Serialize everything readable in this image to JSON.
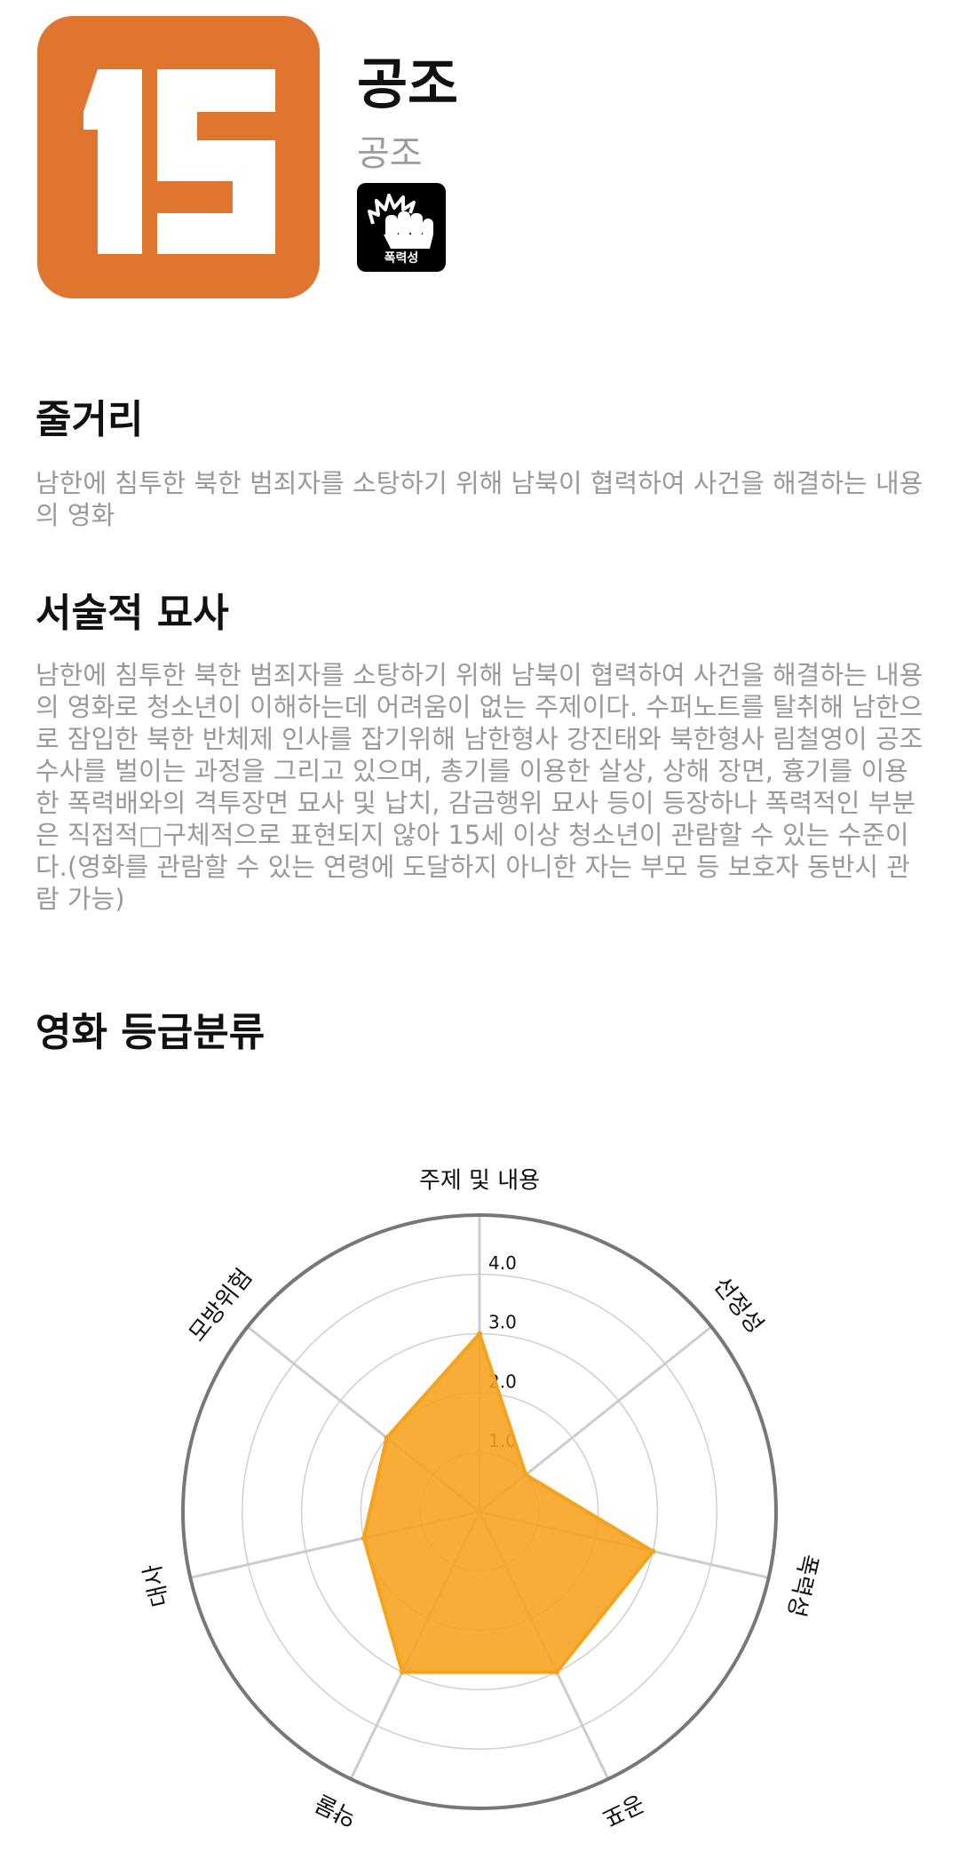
{
  "movie": {
    "rating_number": "15",
    "title": "공조",
    "subtitle": "공조",
    "content_badge_label": "폭력성",
    "content_badge_icon": "fist-icon"
  },
  "sections": {
    "synopsis_heading": "줄거리",
    "synopsis_text": "남한에 침투한 북한 범죄자를 소탕하기 위해 남북이 협력하여 사건을 해결하는 내용의 영화",
    "description_heading": "서술적 묘사",
    "description_text": "남한에 침투한 북한 범죄자를 소탕하기 위해 남북이 협력하여 사건을 해결하는 내용의 영화로 청소년이 이해하는데 어려움이 없는 주제이다. 수퍼노트를 탈취해 남한으로 잠입한 북한 반체제 인사를 잡기위해 남한형사 강진태와 북한형사 림철영이 공조수사를 벌이는 과정을 그리고 있으며, 총기를 이용한 살상, 상해 장면, 흉기를 이용한 폭력배와의 격투장면 묘사 및 납치, 감금행위 묘사 등이 등장하나 폭력적인 부분은 직접적□구체적으로 표현되지 않아 15세 이상 청소년이 관람할 수 있는 수준이다.(영화를 관람할 수 있는 연령에 도달하지 아니한 자는 부모 등 보호자 동반시 관람 가능)",
    "classification_heading": "영화 등급분류"
  },
  "colors": {
    "badge_orange": "#e0752f",
    "radar_fill": "#f8a21e"
  },
  "chart_data": {
    "type": "radar",
    "title": "영화 등급분류",
    "categories": [
      "주제 및 내용",
      "선정성",
      "폭력성",
      "공포",
      "약물",
      "대사",
      "모방위험"
    ],
    "values": [
      3.0,
      1.0,
      3.0,
      3.0,
      3.0,
      2.0,
      2.0
    ],
    "rmax": 5,
    "ticks": [
      1.0,
      2.0,
      3.0,
      4.0
    ],
    "tick_labels": [
      "1.0",
      "2.0",
      "3.0",
      "4.0"
    ]
  }
}
